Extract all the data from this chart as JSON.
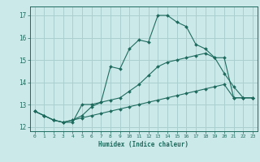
{
  "title": "",
  "xlabel": "Humidex (Indice chaleur)",
  "ylabel": "",
  "xlim": [
    -0.5,
    23.5
  ],
  "ylim": [
    11.8,
    17.4
  ],
  "xticks": [
    0,
    1,
    2,
    3,
    4,
    5,
    6,
    7,
    8,
    9,
    10,
    11,
    12,
    13,
    14,
    15,
    16,
    17,
    18,
    19,
    20,
    21,
    22,
    23
  ],
  "yticks": [
    12,
    13,
    14,
    15,
    16,
    17
  ],
  "bg_color": "#cce9e9",
  "line_color": "#1e6b5e",
  "grid_color": "#aacfcf",
  "lines": [
    {
      "x": [
        0,
        1,
        2,
        3,
        4,
        5,
        6,
        7,
        8,
        9,
        10,
        11,
        12,
        13,
        14,
        15,
        16,
        17,
        18,
        19,
        20,
        21,
        22,
        23
      ],
      "y": [
        12.7,
        12.5,
        12.3,
        12.2,
        12.2,
        13.0,
        13.0,
        13.1,
        14.7,
        14.6,
        15.5,
        15.9,
        15.8,
        17.0,
        17.0,
        16.7,
        16.5,
        15.7,
        15.5,
        15.1,
        14.4,
        13.8,
        13.3,
        13.3
      ]
    },
    {
      "x": [
        0,
        1,
        2,
        3,
        4,
        5,
        6,
        7,
        8,
        9,
        10,
        11,
        12,
        13,
        14,
        15,
        16,
        17,
        18,
        19,
        20,
        21,
        22,
        23
      ],
      "y": [
        12.7,
        12.5,
        12.3,
        12.2,
        12.3,
        12.5,
        12.9,
        13.1,
        13.2,
        13.3,
        13.6,
        13.9,
        14.3,
        14.7,
        14.9,
        15.0,
        15.1,
        15.2,
        15.3,
        15.1,
        15.1,
        13.3,
        13.3,
        13.3
      ]
    },
    {
      "x": [
        0,
        1,
        2,
        3,
        4,
        5,
        6,
        7,
        8,
        9,
        10,
        11,
        12,
        13,
        14,
        15,
        16,
        17,
        18,
        19,
        20,
        21,
        22,
        23
      ],
      "y": [
        12.7,
        12.5,
        12.3,
        12.2,
        12.3,
        12.4,
        12.5,
        12.6,
        12.7,
        12.8,
        12.9,
        13.0,
        13.1,
        13.2,
        13.3,
        13.4,
        13.5,
        13.6,
        13.7,
        13.8,
        13.9,
        13.3,
        13.3,
        13.3
      ]
    }
  ]
}
